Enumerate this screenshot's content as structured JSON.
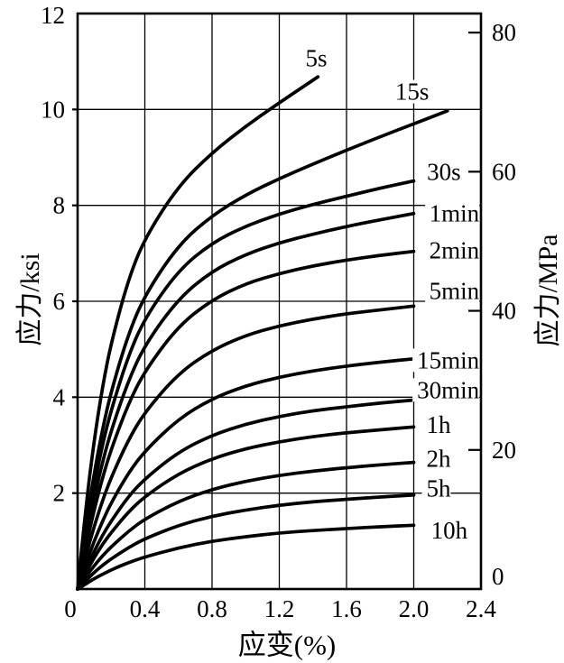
{
  "figure": {
    "background": "#ffffff",
    "line_color": "#000000"
  },
  "chart_data": {
    "type": "line",
    "title": "",
    "xlabel": "应变(%)",
    "ylabel_left": "应力/ksi",
    "ylabel_right": "应力/MPa",
    "xlim": [
      0,
      2.4
    ],
    "ylim_ksi": [
      0,
      12
    ],
    "ylim_mpa": [
      0,
      82.74
    ],
    "grid": true,
    "x_ticks": [
      0,
      0.4,
      0.8,
      1.2,
      1.6,
      2.0,
      2.4
    ],
    "x_tick_labels": [
      "0",
      "0.4",
      "0.8",
      "1.2",
      "1.6",
      "2.0",
      "2.4"
    ],
    "y_left_ticks": [
      2,
      4,
      6,
      8,
      10,
      12
    ],
    "y_left_tick_labels": [
      "2",
      "4",
      "6",
      "8",
      "10",
      "12"
    ],
    "y_right_ticks_mpa": [
      0,
      20,
      40,
      60,
      80
    ],
    "y_right_tick_labels": [
      "0",
      "20",
      "40",
      "60",
      "80"
    ],
    "legend_position": "labels-on-curves",
    "series": [
      {
        "name": "5s",
        "label": {
          "text": "5s",
          "at": [
            1.42,
            11.07
          ],
          "anchor": "middle"
        },
        "points": [
          [
            0,
            0
          ],
          [
            0.05,
            1.75
          ],
          [
            0.1,
            3.14
          ],
          [
            0.15,
            4.25
          ],
          [
            0.2,
            5.14
          ],
          [
            0.3,
            6.44
          ],
          [
            0.4,
            7.32
          ],
          [
            0.6,
            8.41
          ],
          [
            0.8,
            9.1
          ],
          [
            1.0,
            9.65
          ],
          [
            1.2,
            10.14
          ],
          [
            1.43,
            10.68
          ]
        ]
      },
      {
        "name": "15s",
        "label": {
          "text": "15s",
          "at": [
            1.99,
            10.37
          ],
          "anchor": "middle"
        },
        "points": [
          [
            0,
            0
          ],
          [
            0.05,
            1.34
          ],
          [
            0.1,
            2.44
          ],
          [
            0.15,
            3.36
          ],
          [
            0.2,
            4.13
          ],
          [
            0.3,
            5.3
          ],
          [
            0.4,
            6.13
          ],
          [
            0.6,
            7.18
          ],
          [
            0.8,
            7.79
          ],
          [
            1.0,
            8.22
          ],
          [
            1.2,
            8.56
          ],
          [
            1.4,
            8.86
          ],
          [
            1.6,
            9.15
          ],
          [
            1.8,
            9.43
          ],
          [
            2.0,
            9.7
          ],
          [
            2.2,
            9.97
          ]
        ]
      },
      {
        "name": "30s",
        "label": {
          "text": "30s",
          "at": [
            2.28,
            8.7
          ],
          "anchor": "end"
        },
        "points": [
          [
            0,
            0
          ],
          [
            0.05,
            1.19
          ],
          [
            0.1,
            2.19
          ],
          [
            0.15,
            3.04
          ],
          [
            0.2,
            3.74
          ],
          [
            0.3,
            4.85
          ],
          [
            0.4,
            5.65
          ],
          [
            0.6,
            6.65
          ],
          [
            0.8,
            7.22
          ],
          [
            1.0,
            7.57
          ],
          [
            1.2,
            7.82
          ],
          [
            1.4,
            8.02
          ],
          [
            1.6,
            8.19
          ],
          [
            1.8,
            8.36
          ],
          [
            2.0,
            8.51
          ]
        ]
      },
      {
        "name": "1min",
        "label": {
          "text": "1min",
          "at": [
            2.39,
            7.83
          ],
          "anchor": "end"
        },
        "points": [
          [
            0,
            0
          ],
          [
            0.05,
            1.04
          ],
          [
            0.1,
            1.92
          ],
          [
            0.15,
            2.67
          ],
          [
            0.2,
            3.31
          ],
          [
            0.3,
            4.33
          ],
          [
            0.4,
            5.09
          ],
          [
            0.6,
            6.06
          ],
          [
            0.8,
            6.63
          ],
          [
            1.0,
            6.98
          ],
          [
            1.2,
            7.22
          ],
          [
            1.4,
            7.4
          ],
          [
            1.6,
            7.56
          ],
          [
            1.8,
            7.7
          ],
          [
            2.0,
            7.83
          ]
        ]
      },
      {
        "name": "2min",
        "label": {
          "text": "2min",
          "at": [
            2.39,
            7.06
          ],
          "anchor": "end"
        },
        "points": [
          [
            0,
            0
          ],
          [
            0.05,
            0.9
          ],
          [
            0.1,
            1.67
          ],
          [
            0.15,
            2.34
          ],
          [
            0.2,
            2.92
          ],
          [
            0.3,
            3.85
          ],
          [
            0.4,
            4.55
          ],
          [
            0.6,
            5.49
          ],
          [
            0.8,
            6.03
          ],
          [
            1.0,
            6.37
          ],
          [
            1.2,
            6.58
          ],
          [
            1.4,
            6.74
          ],
          [
            1.6,
            6.86
          ],
          [
            1.8,
            6.96
          ],
          [
            2.0,
            7.04
          ]
        ]
      },
      {
        "name": "5min",
        "label": {
          "text": "5min",
          "at": [
            2.39,
            6.22
          ],
          "anchor": "end"
        },
        "points": [
          [
            0,
            0
          ],
          [
            0.05,
            0.71
          ],
          [
            0.1,
            1.32
          ],
          [
            0.15,
            1.86
          ],
          [
            0.2,
            2.33
          ],
          [
            0.3,
            3.1
          ],
          [
            0.4,
            3.69
          ],
          [
            0.6,
            4.5
          ],
          [
            0.8,
            4.98
          ],
          [
            1.0,
            5.29
          ],
          [
            1.2,
            5.49
          ],
          [
            1.4,
            5.63
          ],
          [
            1.6,
            5.74
          ],
          [
            1.8,
            5.82
          ],
          [
            2.0,
            5.9
          ]
        ]
      },
      {
        "name": "15min",
        "label": {
          "text": "15min",
          "at": [
            2.39,
            4.77
          ],
          "anchor": "end"
        },
        "points": [
          [
            0,
            0
          ],
          [
            0.05,
            0.54
          ],
          [
            0.1,
            1.01
          ],
          [
            0.15,
            1.43
          ],
          [
            0.2,
            1.8
          ],
          [
            0.3,
            2.41
          ],
          [
            0.4,
            2.88
          ],
          [
            0.6,
            3.55
          ],
          [
            0.8,
            3.97
          ],
          [
            1.0,
            4.24
          ],
          [
            1.2,
            4.42
          ],
          [
            1.4,
            4.55
          ],
          [
            1.6,
            4.65
          ],
          [
            1.8,
            4.73
          ],
          [
            2.0,
            4.8
          ]
        ]
      },
      {
        "name": "30min",
        "label": {
          "text": "30min",
          "at": [
            2.39,
            4.15
          ],
          "anchor": "end"
        },
        "points": [
          [
            0,
            0
          ],
          [
            0.05,
            0.42
          ],
          [
            0.1,
            0.8
          ],
          [
            0.15,
            1.13
          ],
          [
            0.2,
            1.42
          ],
          [
            0.3,
            1.92
          ],
          [
            0.4,
            2.3
          ],
          [
            0.6,
            2.86
          ],
          [
            0.8,
            3.21
          ],
          [
            1.0,
            3.44
          ],
          [
            1.2,
            3.6
          ],
          [
            1.4,
            3.72
          ],
          [
            1.6,
            3.8
          ],
          [
            1.8,
            3.88
          ],
          [
            2.0,
            3.94
          ]
        ]
      },
      {
        "name": "1h",
        "label": {
          "text": "1h",
          "at": [
            2.22,
            3.42
          ],
          "anchor": "end"
        },
        "points": [
          [
            0,
            0
          ],
          [
            0.05,
            0.35
          ],
          [
            0.1,
            0.66
          ],
          [
            0.15,
            0.94
          ],
          [
            0.2,
            1.18
          ],
          [
            0.3,
            1.6
          ],
          [
            0.4,
            1.93
          ],
          [
            0.6,
            2.41
          ],
          [
            0.8,
            2.72
          ],
          [
            1.0,
            2.93
          ],
          [
            1.2,
            3.07
          ],
          [
            1.4,
            3.18
          ],
          [
            1.6,
            3.26
          ],
          [
            1.8,
            3.32
          ],
          [
            2.0,
            3.38
          ]
        ]
      },
      {
        "name": "2h",
        "label": {
          "text": "2h",
          "at": [
            2.22,
            2.72
          ],
          "anchor": "end"
        },
        "points": [
          [
            0,
            0
          ],
          [
            0.05,
            0.26
          ],
          [
            0.1,
            0.49
          ],
          [
            0.15,
            0.7
          ],
          [
            0.2,
            0.88
          ],
          [
            0.3,
            1.2
          ],
          [
            0.4,
            1.46
          ],
          [
            0.6,
            1.83
          ],
          [
            0.8,
            2.08
          ],
          [
            1.0,
            2.25
          ],
          [
            1.2,
            2.37
          ],
          [
            1.4,
            2.46
          ],
          [
            1.6,
            2.53
          ],
          [
            1.8,
            2.59
          ],
          [
            2.0,
            2.64
          ]
        ]
      },
      {
        "name": "5h",
        "label": {
          "text": "5h",
          "at": [
            2.22,
            2.1
          ],
          "anchor": "end"
        },
        "points": [
          [
            0,
            0
          ],
          [
            0.05,
            0.18
          ],
          [
            0.1,
            0.35
          ],
          [
            0.15,
            0.5
          ],
          [
            0.2,
            0.63
          ],
          [
            0.3,
            0.86
          ],
          [
            0.4,
            1.05
          ],
          [
            0.6,
            1.33
          ],
          [
            0.8,
            1.52
          ],
          [
            1.0,
            1.65
          ],
          [
            1.2,
            1.75
          ],
          [
            1.4,
            1.82
          ],
          [
            1.6,
            1.87
          ],
          [
            1.8,
            1.92
          ],
          [
            2.0,
            1.96
          ]
        ]
      },
      {
        "name": "10h",
        "label": {
          "text": "10h",
          "at": [
            2.32,
            1.22
          ],
          "anchor": "end"
        },
        "points": [
          [
            0,
            0
          ],
          [
            0.05,
            0.11
          ],
          [
            0.1,
            0.22
          ],
          [
            0.2,
            0.4
          ],
          [
            0.3,
            0.55
          ],
          [
            0.4,
            0.67
          ],
          [
            0.6,
            0.86
          ],
          [
            0.8,
            1.0
          ],
          [
            1.0,
            1.09
          ],
          [
            1.2,
            1.17
          ],
          [
            1.4,
            1.22
          ],
          [
            1.6,
            1.26
          ],
          [
            1.8,
            1.3
          ],
          [
            2.0,
            1.33
          ]
        ]
      }
    ]
  }
}
